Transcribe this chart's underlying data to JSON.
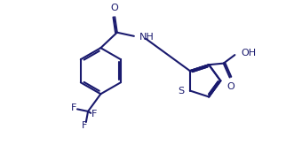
{
  "bg_color": "#ffffff",
  "line_color": "#1a1a6e",
  "line_width": 1.5,
  "fig_width": 3.22,
  "fig_height": 1.73,
  "dpi": 100,
  "font_size": 8.0,
  "font_color": "#1a1a6e",
  "xlim": [
    0,
    10
  ],
  "ylim": [
    0,
    5.4
  ]
}
